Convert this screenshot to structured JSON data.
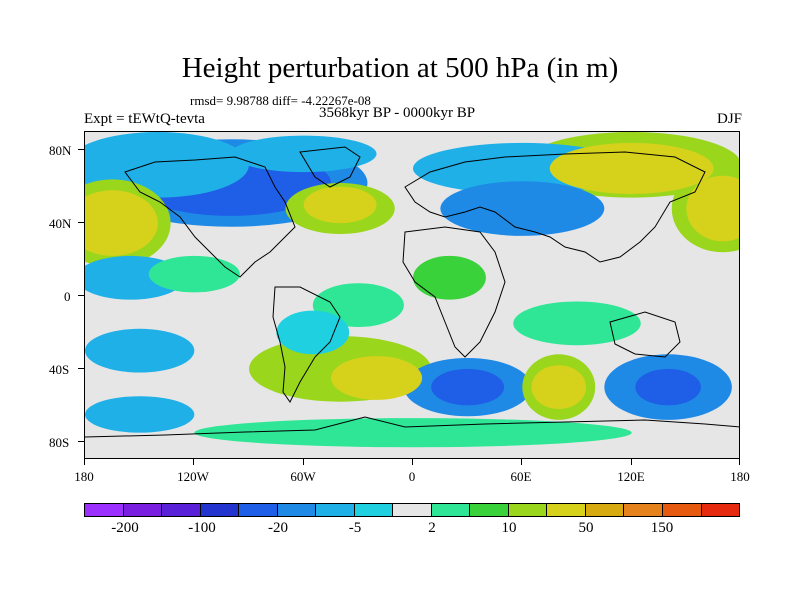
{
  "title": "Height perturbation at 500 hPa (in m)",
  "stats": "rmsd= 9.98788 diff= -4.22267e-08",
  "experiment": "Expt = tEWtQ-tevta",
  "period": "3568kyr BP - 0000kyr BP",
  "season": "DJF",
  "map": {
    "projection": "cylindrical equidistant",
    "lon_range": [
      -180,
      180
    ],
    "lat_range": [
      -90,
      90
    ],
    "background_color": "#e6e6e6",
    "coastline_color": "#000000",
    "lat_labels": [
      "80N",
      "40N",
      "0",
      "40S",
      "80S"
    ],
    "lon_labels": [
      "180",
      "120W",
      "60W",
      "0",
      "60E",
      "120E",
      "180"
    ]
  },
  "colorbar": {
    "colors": [
      "#9b30ff",
      "#7a1fe0",
      "#5a22d8",
      "#2434cf",
      "#1f5ee6",
      "#1f8ae6",
      "#1fb0e8",
      "#1fd0e0",
      "#e6e6e6",
      "#2ee696",
      "#3ad23a",
      "#9ad61c",
      "#d6d21c",
      "#d6aa10",
      "#e6821c",
      "#e65a10",
      "#e62a10"
    ],
    "labels": [
      "-200",
      "-100",
      "-20",
      "-5",
      "2",
      "10",
      "50",
      "150"
    ]
  },
  "field_patches": [
    {
      "lon": -165,
      "lat": 40,
      "color": "#d6d21c",
      "rx": 25,
      "ry": 18
    },
    {
      "lon": -165,
      "lat": 40,
      "color": "#9ad61c",
      "rx": 32,
      "ry": 24
    },
    {
      "lon": -100,
      "lat": 62,
      "color": "#1f5ee6",
      "rx": 55,
      "ry": 18
    },
    {
      "lon": -100,
      "lat": 62,
      "color": "#1f8ae6",
      "rx": 75,
      "ry": 24
    },
    {
      "lon": -140,
      "lat": 72,
      "color": "#1fb0e8",
      "rx": 50,
      "ry": 18
    },
    {
      "lon": -40,
      "lat": 50,
      "color": "#d6d21c",
      "rx": 20,
      "ry": 10
    },
    {
      "lon": -40,
      "lat": 48,
      "color": "#9ad61c",
      "rx": 30,
      "ry": 14
    },
    {
      "lon": -60,
      "lat": 78,
      "color": "#1fb0e8",
      "rx": 40,
      "ry": 10
    },
    {
      "lon": 60,
      "lat": 48,
      "color": "#1f8ae6",
      "rx": 45,
      "ry": 15
    },
    {
      "lon": 60,
      "lat": 70,
      "color": "#1fb0e8",
      "rx": 60,
      "ry": 14
    },
    {
      "lon": 120,
      "lat": 70,
      "color": "#d6d21c",
      "rx": 45,
      "ry": 14
    },
    {
      "lon": 120,
      "lat": 72,
      "color": "#9ad61c",
      "rx": 60,
      "ry": 18
    },
    {
      "lon": 170,
      "lat": 48,
      "color": "#d6d21c",
      "rx": 20,
      "ry": 18
    },
    {
      "lon": 170,
      "lat": 48,
      "color": "#9ad61c",
      "rx": 28,
      "ry": 24
    },
    {
      "lon": -155,
      "lat": 10,
      "color": "#1fb0e8",
      "rx": 30,
      "ry": 12
    },
    {
      "lon": -120,
      "lat": 12,
      "color": "#2ee696",
      "rx": 25,
      "ry": 10
    },
    {
      "lon": -30,
      "lat": -5,
      "color": "#2ee696",
      "rx": 25,
      "ry": 12
    },
    {
      "lon": -20,
      "lat": -45,
      "color": "#d6d21c",
      "rx": 25,
      "ry": 12
    },
    {
      "lon": -40,
      "lat": -40,
      "color": "#9ad61c",
      "rx": 50,
      "ry": 18
    },
    {
      "lon": -55,
      "lat": -20,
      "color": "#1fd0e0",
      "rx": 20,
      "ry": 12
    },
    {
      "lon": -150,
      "lat": -30,
      "color": "#1fb0e8",
      "rx": 30,
      "ry": 12
    },
    {
      "lon": -150,
      "lat": -65,
      "color": "#1fb0e8",
      "rx": 30,
      "ry": 10
    },
    {
      "lon": 30,
      "lat": -50,
      "color": "#1f5ee6",
      "rx": 20,
      "ry": 10
    },
    {
      "lon": 30,
      "lat": -50,
      "color": "#1f8ae6",
      "rx": 35,
      "ry": 16
    },
    {
      "lon": 80,
      "lat": -50,
      "color": "#d6d21c",
      "rx": 15,
      "ry": 12
    },
    {
      "lon": 80,
      "lat": -50,
      "color": "#9ad61c",
      "rx": 20,
      "ry": 18
    },
    {
      "lon": 140,
      "lat": -50,
      "color": "#1f5ee6",
      "rx": 18,
      "ry": 10
    },
    {
      "lon": 140,
      "lat": -50,
      "color": "#1f8ae6",
      "rx": 35,
      "ry": 18
    },
    {
      "lon": 20,
      "lat": 10,
      "color": "#3ad23a",
      "rx": 20,
      "ry": 12
    },
    {
      "lon": 90,
      "lat": -15,
      "color": "#2ee696",
      "rx": 35,
      "ry": 12
    },
    {
      "lon": 0,
      "lat": -75,
      "color": "#2ee696",
      "rx": 120,
      "ry": 8
    }
  ]
}
